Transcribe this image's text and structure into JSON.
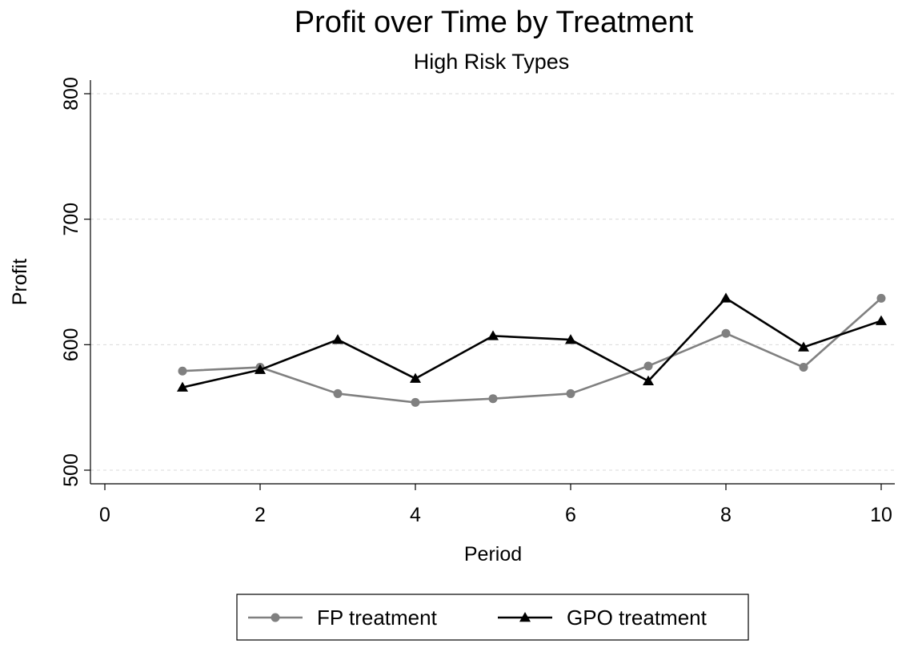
{
  "chart_data": {
    "type": "line",
    "title": "Profit over Time by Treatment",
    "subtitle": "High Risk Types",
    "xlabel": "Period",
    "ylabel": "Profit",
    "xlim": [
      0,
      10
    ],
    "ylim": [
      500,
      800
    ],
    "xticks": [
      0,
      2,
      4,
      6,
      8,
      10
    ],
    "yticks": [
      500,
      600,
      700,
      800
    ],
    "grid": "horizontal dashed",
    "legend_position": "bottom",
    "x": [
      1,
      2,
      3,
      4,
      5,
      6,
      7,
      8,
      9,
      10
    ],
    "series": [
      {
        "name": "FP treatment",
        "color": "#808080",
        "marker": "circle",
        "values": [
          579,
          582,
          561,
          554,
          557,
          561,
          583,
          609,
          582,
          637
        ]
      },
      {
        "name": "GPO treatment",
        "color": "#000000",
        "marker": "triangle",
        "values": [
          566,
          580,
          604,
          573,
          607,
          604,
          571,
          637,
          598,
          619
        ]
      }
    ]
  }
}
